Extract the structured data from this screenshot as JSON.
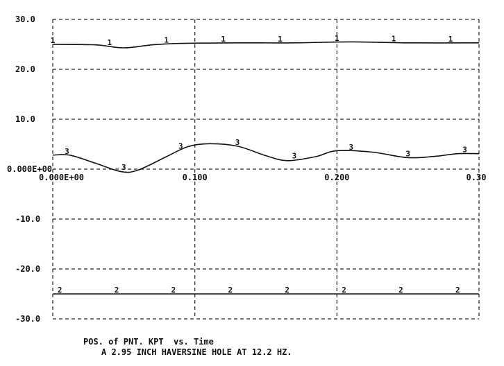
{
  "chart_data": {
    "type": "line",
    "caption_line1": "POS. of PNT. KPT  vs. Time",
    "caption_line2": "A 2.95 INCH HAVERSINE HOLE AT 12.2 HZ.",
    "xlim": [
      0,
      0.3
    ],
    "ylim": [
      -30,
      30
    ],
    "x_ticks": [
      0.0,
      0.1,
      0.2,
      0.3
    ],
    "x_tick_labels": [
      "0.000E+00",
      "0.100",
      "0.200",
      "0.30"
    ],
    "y_ticks": [
      30,
      20,
      10,
      0,
      -10,
      -20,
      -30
    ],
    "y_tick_labels": [
      "30.0",
      "20.0",
      "10.0",
      "0.000E+00",
      "-10.0",
      "-20.0",
      "-30.0"
    ],
    "grid": true,
    "series": [
      {
        "marker_label": "1",
        "x": [
          0.0,
          0.03,
          0.05,
          0.07,
          0.09,
          0.13,
          0.17,
          0.21,
          0.25,
          0.3
        ],
        "y": [
          25.0,
          24.9,
          24.3,
          24.9,
          25.2,
          25.3,
          25.3,
          25.5,
          25.3,
          25.3
        ],
        "marker_x": [
          0.0,
          0.04,
          0.08,
          0.12,
          0.16,
          0.2,
          0.24,
          0.28
        ]
      },
      {
        "marker_label": "3",
        "x": [
          0.0,
          0.012,
          0.03,
          0.048,
          0.06,
          0.08,
          0.095,
          0.11,
          0.13,
          0.15,
          0.165,
          0.185,
          0.2,
          0.225,
          0.25,
          0.27,
          0.285,
          0.3
        ],
        "y": [
          2.8,
          2.8,
          1.2,
          -0.5,
          -0.2,
          2.5,
          4.5,
          5.1,
          4.6,
          2.7,
          1.7,
          2.5,
          3.7,
          3.4,
          2.3,
          2.6,
          3.1,
          3.1
        ],
        "marker_x": [
          0.01,
          0.05,
          0.09,
          0.13,
          0.17,
          0.21,
          0.25,
          0.29
        ]
      },
      {
        "marker_label": "2",
        "x": [
          0.0,
          0.05,
          0.1,
          0.15,
          0.2,
          0.25,
          0.3
        ],
        "y": [
          -25.0,
          -25.0,
          -25.0,
          -25.0,
          -25.0,
          -25.0,
          -25.0
        ],
        "marker_x": [
          0.005,
          0.045,
          0.085,
          0.125,
          0.165,
          0.205,
          0.245,
          0.285
        ]
      }
    ]
  }
}
